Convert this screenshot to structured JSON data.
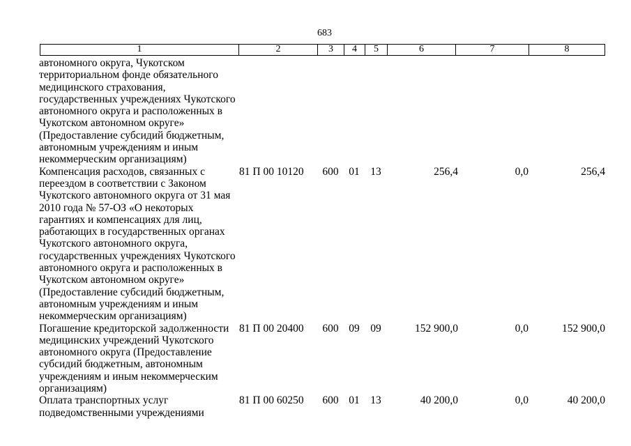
{
  "page": {
    "number": "683"
  },
  "table": {
    "header": {
      "columns": [
        "1",
        "2",
        "3",
        "4",
        "5",
        "6",
        "7",
        "8"
      ]
    },
    "rows": [
      {
        "name_lines": [
          "автономного округа, Чукотском",
          "территориальном фонде обязательного",
          "медицинского страхования,",
          "государственных учреждениях Чукотского",
          "автономного округа и расположенных в",
          "Чукотском автономном округе»",
          "(Предоставление субсидий бюджетным,",
          "автономным учреждениям и иным",
          "некоммерческим организациям)"
        ],
        "code": "",
        "col3": "",
        "col4": "",
        "col5": "",
        "col6": "",
        "col7": "",
        "col8": ""
      },
      {
        "name_lines": [
          "Компенсация расходов, связанных с",
          "переездом в соответствии с Законом",
          "Чукотского автономного округа от 31 мая",
          "2010 года № 57-ОЗ «О некоторых",
          "гарантиях и компенсациях для лиц,",
          "работающих в государственных органах",
          "Чукотского автономного округа,",
          "государственных учреждениях Чукотского",
          "автономного округа и расположенных в",
          "Чукотском автономном округе»",
          "(Предоставление субсидий бюджетным,",
          "автономным учреждениям и иным",
          "некоммерческим организациям)"
        ],
        "code": "81 П 00 10120",
        "col3": "600",
        "col4": "01",
        "col5": "13",
        "col6": "256,4",
        "col7": "0,0",
        "col8": "256,4"
      },
      {
        "name_lines": [
          "Погашение кредиторской задолженности",
          "медицинских учреждений Чукотского",
          "автономного округа (Предоставление",
          "субсидий бюджетным, автономным",
          "учреждениям и иным некоммерческим",
          "организациям)"
        ],
        "code": "81 П 00 20400",
        "col3": "600",
        "col4": "09",
        "col5": "09",
        "col6": "152 900,0",
        "col7": "0,0",
        "col8": "152 900,0"
      },
      {
        "name_lines": [
          "Оплата транспортных услуг",
          "подведомственными учреждениями"
        ],
        "code": "81 П 00 60250",
        "col3": "600",
        "col4": "01",
        "col5": "13",
        "col6": "40 200,0",
        "col7": "0,0",
        "col8": "40 200,0"
      }
    ]
  }
}
